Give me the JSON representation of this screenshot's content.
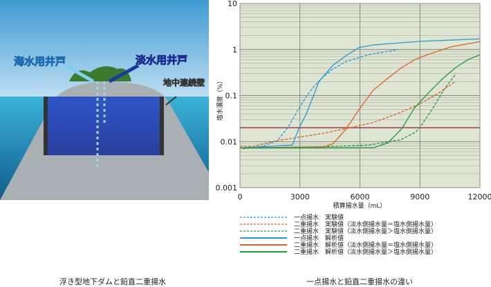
{
  "illustration": {
    "labels": {
      "seawater_well": "海水用井戸",
      "freshwater_well": "淡水用井戸",
      "cutoff_wall": "地中連続壁"
    },
    "caption": "浮き型地下ダムと鉛直二重揚水"
  },
  "chart_caption": "一点揚水と鉛直二重揚水の違い",
  "chart_data": {
    "type": "line",
    "title": "",
    "xlabel": "積算揚水量（mL）",
    "ylabel": "塩水濃度（%）",
    "xlim": [
      0,
      12000
    ],
    "ylim": [
      0.001,
      10
    ],
    "yscale": "log",
    "grid": true,
    "x_ticks": [
      "0",
      "3000",
      "6000",
      "9000",
      "12000"
    ],
    "y_ticks": [
      "0.001",
      "0.01",
      "0.1",
      "1",
      "10"
    ],
    "background": "#dfe5d3",
    "reference_line": {
      "y": 0.02,
      "color": "#8b1a2a"
    },
    "legend_placement": "bottom",
    "series": [
      {
        "name": "一点揚水　実験値",
        "color": "#1e9bd7",
        "dash": true,
        "x": [
          140,
          1120,
          1870,
          2390,
          2960,
          3480,
          4000,
          4580,
          5270,
          6420,
          7920
        ],
        "y": [
          0.007,
          0.0079,
          0.0105,
          0.02,
          0.054,
          0.12,
          0.22,
          0.36,
          0.54,
          0.77,
          1.0
        ]
      },
      {
        "name": "二重揚水　実験値（淡水側揚水量＝塩水側揚水量）",
        "color": "#e0601a",
        "dash": true,
        "x": [
          0,
          660,
          1810,
          2960,
          4120,
          5270,
          6660,
          7920,
          8960,
          9890,
          10750
        ],
        "y": [
          0.0079,
          0.0079,
          0.0104,
          0.0125,
          0.015,
          0.019,
          0.026,
          0.041,
          0.065,
          0.11,
          0.2
        ]
      },
      {
        "name": "二重揚水　実験値（淡水側揚水量＞塩水側揚水量）",
        "color": "#1e9a3a",
        "dash": true,
        "x": [
          0,
          4120,
          6420,
          8040,
          8790,
          9080,
          9660,
          10230,
          10800
        ],
        "y": [
          0.0073,
          0.0077,
          0.0084,
          0.011,
          0.016,
          0.023,
          0.054,
          0.14,
          0.3
        ]
      },
      {
        "name": "一点揚水　解析値",
        "color": "#1e9bd7",
        "dash": false,
        "x": [
          0,
          2620,
          2960,
          3310,
          3950,
          4640,
          5390,
          5960,
          6660,
          8960,
          12000
        ],
        "y": [
          0.0073,
          0.0084,
          0.02,
          0.039,
          0.2,
          0.45,
          0.78,
          1.1,
          1.26,
          1.5,
          1.7
        ]
      },
      {
        "name": "二重揚水　解析値（淡水側揚水量＝塩水側揚水量）",
        "color": "#e0601a",
        "dash": false,
        "x": [
          0,
          4120,
          4640,
          5270,
          5960,
          6660,
          7350,
          8040,
          8730,
          9430,
          10580,
          12000
        ],
        "y": [
          0.0073,
          0.0076,
          0.0089,
          0.018,
          0.05,
          0.13,
          0.23,
          0.39,
          0.6,
          0.79,
          1.15,
          1.48
        ]
      },
      {
        "name": "二重揚水　解析値（淡水側揚水量＞塩水側揚水量）",
        "color": "#1e9a3a",
        "dash": false,
        "x": [
          0,
          6710,
          7400,
          8090,
          8730,
          9430,
          10120,
          10800,
          11390,
          12000
        ],
        "y": [
          0.0073,
          0.0074,
          0.0094,
          0.019,
          0.054,
          0.115,
          0.23,
          0.41,
          0.6,
          0.77
        ]
      }
    ]
  }
}
